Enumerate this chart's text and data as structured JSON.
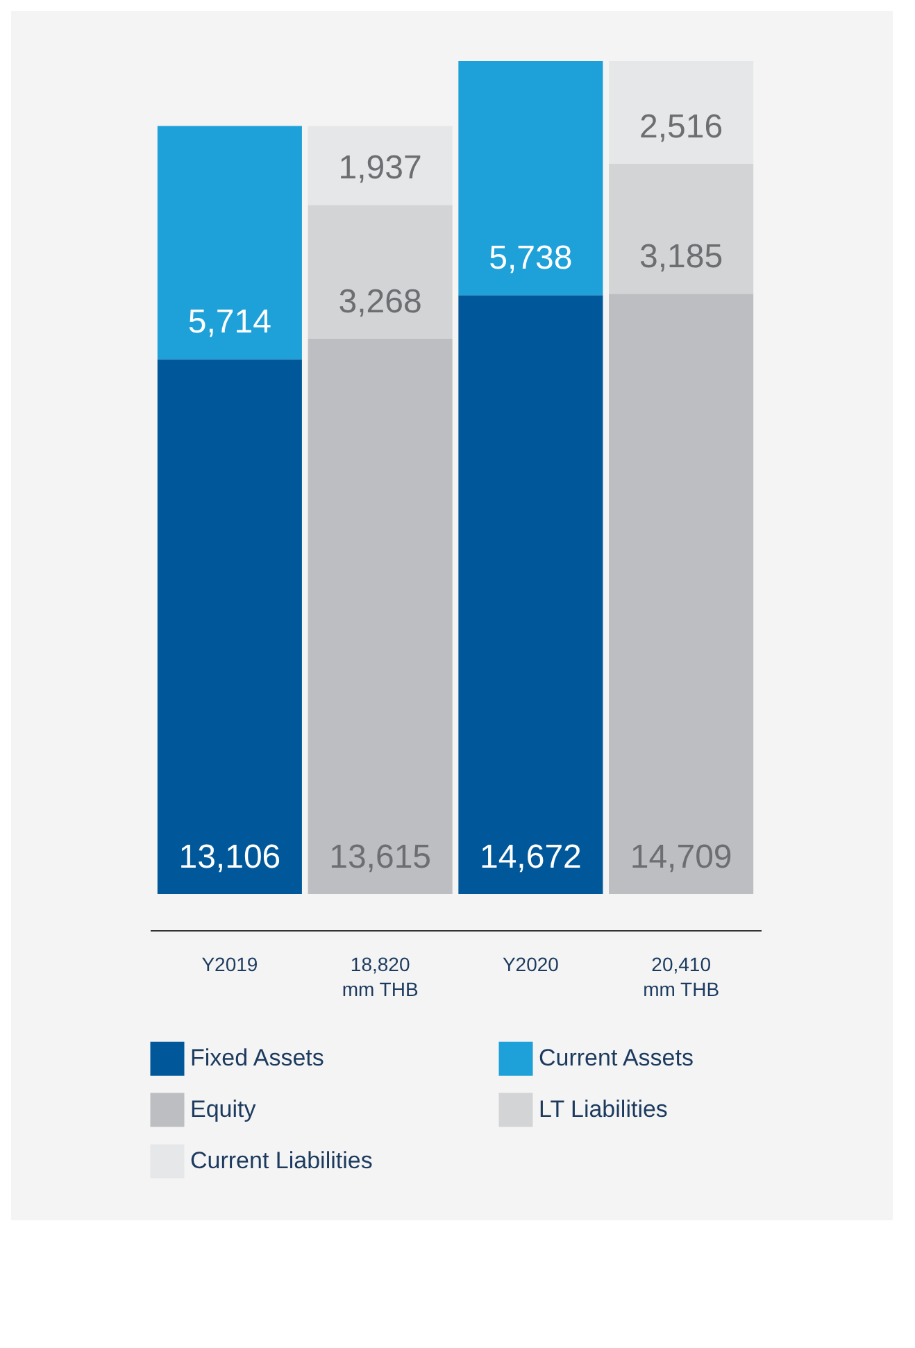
{
  "chart_data": {
    "type": "bar",
    "stacked": true,
    "legend": "bottom",
    "categories": [
      "Y2019",
      "18,820\nmm THB",
      "Y2020",
      "20,410\nmm THB"
    ],
    "series": [
      {
        "name": "Fixed Assets",
        "color": "#00589a",
        "values": [
          13106,
          null,
          14672,
          null
        ],
        "value_labels": [
          "13,106",
          null,
          "14,672",
          null
        ]
      },
      {
        "name": "Current Assets",
        "color": "#1ea0d8",
        "values": [
          5714,
          null,
          5738,
          null
        ],
        "value_labels": [
          "5,714",
          null,
          "5,738",
          null
        ]
      },
      {
        "name": "Equity",
        "color": "#bdbec2",
        "values": [
          null,
          13615,
          null,
          14709
        ],
        "value_labels": [
          null,
          "13,615",
          null,
          "14,709"
        ]
      },
      {
        "name": "LT Liabilities",
        "color": "#d3d4d6",
        "values": [
          null,
          3268,
          null,
          3185
        ],
        "value_labels": [
          null,
          "3,268",
          null,
          "3,185"
        ]
      },
      {
        "name": "Current Liabilities",
        "color": "#e6e7e8",
        "values": [
          null,
          1937,
          null,
          2516
        ],
        "value_labels": [
          null,
          "1,937",
          null,
          "2,516"
        ]
      }
    ]
  }
}
